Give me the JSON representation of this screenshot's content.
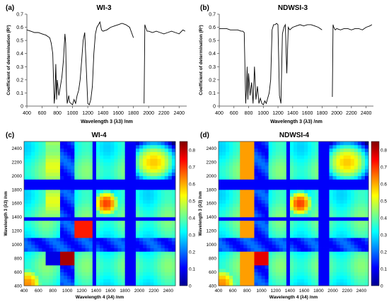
{
  "chart_data": [
    {
      "type": "line",
      "panel_label": "(a)",
      "title": "WI-3",
      "xlabel": "Wavelength 3 (λ3) /nm",
      "ylabel": "Coefficient of determination (R²)",
      "xlim": [
        400,
        2500
      ],
      "ylim": [
        0,
        0.7
      ],
      "xticks": [
        "400",
        "600",
        "800",
        "1000",
        "1200",
        "1400",
        "1600",
        "1800",
        "2000",
        "2200",
        "2400"
      ],
      "yticks": [
        "0",
        "0.1",
        "0.2",
        "0.3",
        "0.4",
        "0.5",
        "0.6",
        "0.7"
      ],
      "series": [
        {
          "x": [
            400,
            450,
            500,
            550,
            600,
            650,
            700,
            720,
            740,
            760,
            770,
            780,
            790,
            800,
            820,
            840,
            860,
            880,
            900,
            910,
            920,
            930,
            940,
            950,
            960,
            980,
            1000,
            1020,
            1040,
            1060,
            1080,
            1100,
            1120,
            1140,
            1160,
            1180,
            1200,
            1220,
            1240,
            1260,
            1280,
            1300,
            1320,
            1340,
            1360,
            1380,
            1400,
            1450,
            1500,
            1550,
            1600,
            1650,
            1700,
            1750,
            1800,
            1850,
            1900,
            1940,
            1950,
            1960,
            1980,
            2000,
            2050,
            2100,
            2150,
            2200,
            2250,
            2300,
            2350,
            2400,
            2450,
            2480
          ],
          "y": [
            0.58,
            0.57,
            0.56,
            0.56,
            0.55,
            0.54,
            0.52,
            0.48,
            0.4,
            0.02,
            0.1,
            0.32,
            0.05,
            0.2,
            0.08,
            0.15,
            0.22,
            0.35,
            0.55,
            0.48,
            0.12,
            0.02,
            0.05,
            0.08,
            0.03,
            0.02,
            0.01,
            0.05,
            0.02,
            0.08,
            0.12,
            0.2,
            0.35,
            0.5,
            0.56,
            0.3,
            0.02,
            0.01,
            0.05,
            0.15,
            0.4,
            0.55,
            0.6,
            0.62,
            0.64,
            0.58,
            0.57,
            0.58,
            0.6,
            0.61,
            0.62,
            0.63,
            0.62,
            0.6,
            0.52,
            null,
            null,
            0.02,
            0.62,
            0.6,
            0.57,
            0.57,
            0.56,
            0.57,
            0.56,
            0.55,
            0.56,
            0.57,
            0.56,
            0.55,
            0.58,
            0.57
          ]
        }
      ]
    },
    {
      "type": "line",
      "panel_label": "(b)",
      "title": "NDWSI-3",
      "xlabel": "Wavelength 3 (λ3) /nm",
      "ylabel": "Coefficient of determination (R²)",
      "xlim": [
        400,
        2500
      ],
      "ylim": [
        0,
        0.7
      ],
      "xticks": [
        "400",
        "600",
        "800",
        "1000",
        "1200",
        "1400",
        "1600",
        "1800",
        "2000",
        "2200",
        "2400"
      ],
      "yticks": [
        "0",
        "0.1",
        "0.2",
        "0.3",
        "0.4",
        "0.5",
        "0.6",
        "0.7"
      ],
      "series": [
        {
          "x": [
            400,
            450,
            500,
            550,
            600,
            650,
            700,
            720,
            740,
            760,
            770,
            780,
            790,
            800,
            820,
            840,
            860,
            880,
            900,
            920,
            940,
            960,
            980,
            1000,
            1020,
            1040,
            1060,
            1080,
            1100,
            1120,
            1140,
            1160,
            1180,
            1200,
            1220,
            1240,
            1260,
            1280,
            1300,
            1320,
            1340,
            1360,
            1380,
            1400,
            1450,
            1500,
            1550,
            1600,
            1650,
            1700,
            1750,
            1800,
            1850,
            1900,
            1940,
            1950,
            1960,
            1980,
            2000,
            2050,
            2100,
            2150,
            2200,
            2250,
            2300,
            2350,
            2400,
            2450,
            2480
          ],
          "y": [
            0.59,
            0.59,
            0.59,
            0.58,
            0.58,
            0.58,
            0.57,
            0.57,
            0.56,
            0.02,
            0.12,
            0.3,
            0.05,
            0.25,
            0.08,
            0.18,
            0.02,
            0.3,
            0.05,
            0.15,
            0.02,
            0.06,
            0.02,
            0.01,
            0.04,
            0.02,
            0.06,
            0.1,
            0.2,
            0.58,
            0.62,
            0.62,
            0.63,
            0.62,
            0.08,
            0.02,
            0.55,
            0.6,
            0.62,
            0.25,
            0.6,
            0.58,
            0.59,
            0.6,
            0.61,
            0.62,
            0.61,
            0.62,
            0.62,
            0.61,
            0.6,
            0.58,
            null,
            null,
            0.07,
            0.62,
            0.6,
            0.58,
            0.59,
            0.58,
            0.59,
            0.59,
            0.58,
            0.59,
            0.59,
            0.58,
            0.6,
            0.61,
            0.62
          ]
        }
      ]
    },
    {
      "type": "heatmap",
      "panel_label": "(c)",
      "title": "WI-4",
      "xlabel": "Wavelength 4 (λ4) /nm",
      "ylabel": "Wavelength 3 (λ3) /nm",
      "xticks": [
        "400",
        "600",
        "800",
        "1000",
        "1200",
        "1400",
        "1600",
        "1800",
        "2000",
        "2200",
        "2400"
      ],
      "yticks": [
        "400",
        "600",
        "800",
        "1000",
        "1200",
        "1400",
        "1600",
        "1800",
        "2000",
        "2200",
        "2400"
      ],
      "colorbar_ticks": [
        "0",
        "0.1",
        "0.2",
        "0.3",
        "0.4",
        "0.5",
        "0.6",
        "0.7",
        "0.8"
      ],
      "colormap": "jet"
    },
    {
      "type": "heatmap",
      "panel_label": "(d)",
      "title": "NDWSI-4",
      "xlabel": "Wavelength 4 (λ4) /nm",
      "ylabel": "Wavelength 3 (λ3) /nm",
      "xticks": [
        "400",
        "600",
        "800",
        "1000",
        "1200",
        "1400",
        "1600",
        "1800",
        "2000",
        "2200",
        "2400"
      ],
      "yticks": [
        "400",
        "600",
        "800",
        "1000",
        "1200",
        "1400",
        "1600",
        "1800",
        "2000",
        "2200",
        "2400"
      ],
      "colorbar_ticks": [
        "0",
        "0.1",
        "0.2",
        "0.3",
        "0.4",
        "0.5",
        "0.6",
        "0.7",
        "0.8"
      ],
      "colormap": "jet"
    }
  ]
}
